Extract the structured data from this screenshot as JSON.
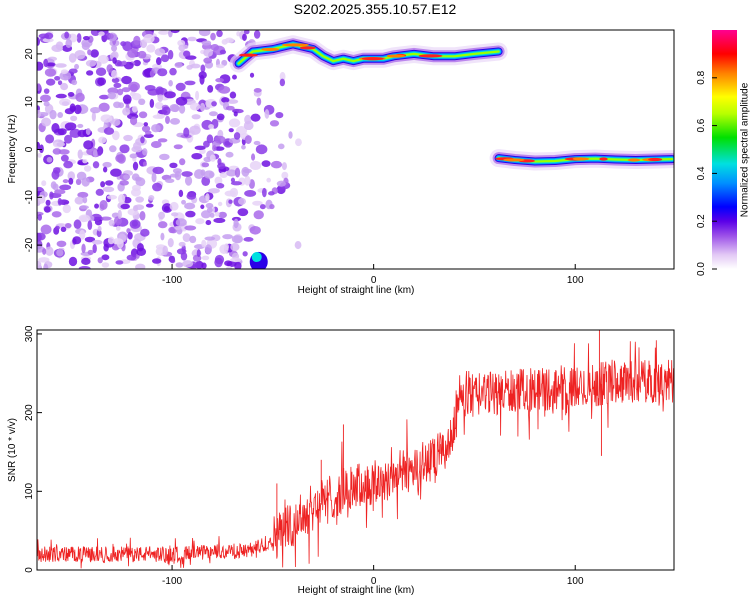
{
  "title": "S202.2025.355.10.57.E12",
  "chart_data": [
    {
      "type": "heatmap",
      "xlabel": "Height of straight line (km)",
      "ylabel": "Frequency (Hz)",
      "xlim": [
        -167,
        149
      ],
      "ylim": [
        -25,
        25
      ],
      "xticks": [
        -100,
        0,
        100
      ],
      "yticks": [
        -20,
        -10,
        0,
        10,
        20
      ],
      "colorbar": {
        "label": "Normalized spectral amplitude",
        "ticks": [
          "0.0",
          "0.2",
          "0.4",
          "0.6",
          "0.8"
        ],
        "range": [
          0,
          1
        ],
        "colors": [
          "#ffffff",
          "#d9b8f2",
          "#9b4fe8",
          "#6a00e0",
          "#0000ff",
          "#0090ff",
          "#00e5e5",
          "#00e000",
          "#b8ff00",
          "#ffff00",
          "#ff8000",
          "#ff0000",
          "#ff0090"
        ]
      },
      "features": {
        "noise_region_x": [
          -167,
          -67
        ],
        "upper_line": {
          "x": [
            -67,
            -60,
            -50,
            -40,
            -35,
            -30,
            -25,
            -20,
            -15,
            -10,
            -5,
            0,
            5,
            10,
            20,
            30,
            40,
            50,
            62
          ],
          "freq_hz": [
            18,
            20.5,
            21,
            22,
            21.5,
            21,
            19.5,
            18.5,
            19,
            18.5,
            19,
            19,
            19,
            19.5,
            20,
            19.5,
            19.5,
            20,
            20.5
          ]
        },
        "lower_line": {
          "x": [
            62,
            70,
            80,
            90,
            100,
            110,
            120,
            130,
            148
          ],
          "freq_hz": [
            -1.8,
            -2.2,
            -2.5,
            -2.4,
            -2,
            -1.9,
            -2.1,
            -2.2,
            -2
          ]
        },
        "bottom_blob": {
          "x": [
            -60,
            -55
          ],
          "freq_hz": [
            -25,
            -21
          ]
        }
      }
    },
    {
      "type": "line",
      "xlabel": "Height of straight line (km)",
      "ylabel": "SNR (10 * v/v)",
      "xlim": [
        -167,
        149
      ],
      "ylim": [
        0,
        305
      ],
      "xticks": [
        -100,
        0,
        100
      ],
      "yticks": [
        0,
        100,
        200,
        300
      ],
      "color": "#ee2222",
      "trend": {
        "x": [
          -167,
          -100,
          -60,
          -50,
          -40,
          -30,
          -20,
          -10,
          0,
          10,
          20,
          30,
          38,
          42,
          60,
          80,
          100,
          120,
          149
        ],
        "y": [
          20,
          20,
          25,
          40,
          60,
          80,
          95,
          105,
          110,
          120,
          130,
          140,
          160,
          220,
          225,
          230,
          230,
          240,
          240
        ]
      },
      "spikes": [
        {
          "x": -48,
          "y": 110
        },
        {
          "x": -26,
          "y": 140
        },
        {
          "x": -15,
          "y": 185
        },
        {
          "x": 33,
          "y": 160
        },
        {
          "x": 112,
          "y": 305
        },
        {
          "x": 113,
          "y": 145
        }
      ]
    }
  ]
}
